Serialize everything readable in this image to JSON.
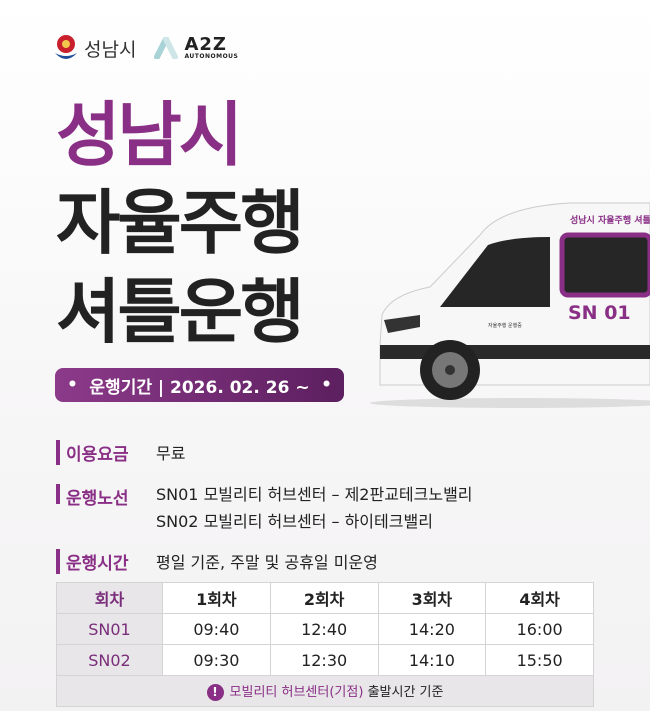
{
  "logos": {
    "city": "성남시",
    "company": "A2Z",
    "company_sub": "AUTONOMOUS"
  },
  "title": {
    "line1": "성남시",
    "line2": "자율주행",
    "line3": "셔틀운행"
  },
  "period": {
    "text": "운행기간 | 2026. 02. 26 ~"
  },
  "van": {
    "banner": "성남시 자율주행 셔틀",
    "number": "SN 01",
    "badge": "자율주행 운행중"
  },
  "info": {
    "fare": {
      "label": "이용요금",
      "value": "무료"
    },
    "route": {
      "label": "운행노선",
      "lines": [
        "SN01 모빌리티 허브센터 – 제2판교테크노밸리",
        "SN02 모빌리티 허브센터 – 하이테크밸리"
      ]
    },
    "hours": {
      "label": "운행시간",
      "value": "평일 기준, 주말 및 공휴일 미운영"
    }
  },
  "table": {
    "headers": [
      "회차",
      "1회차",
      "2회차",
      "3회차",
      "4회차"
    ],
    "rows": [
      {
        "route": "SN01",
        "times": [
          "09:40",
          "12:40",
          "14:20",
          "16:00"
        ]
      },
      {
        "route": "SN02",
        "times": [
          "09:30",
          "12:30",
          "14:10",
          "15:50"
        ]
      }
    ],
    "footnote_icon": "!",
    "footnote_highlight": "모빌리티 허브센터(기점)",
    "footnote_rest": "출발시간 기준"
  },
  "colors": {
    "brand_purple": "#8a2f86",
    "dark": "#222222"
  }
}
